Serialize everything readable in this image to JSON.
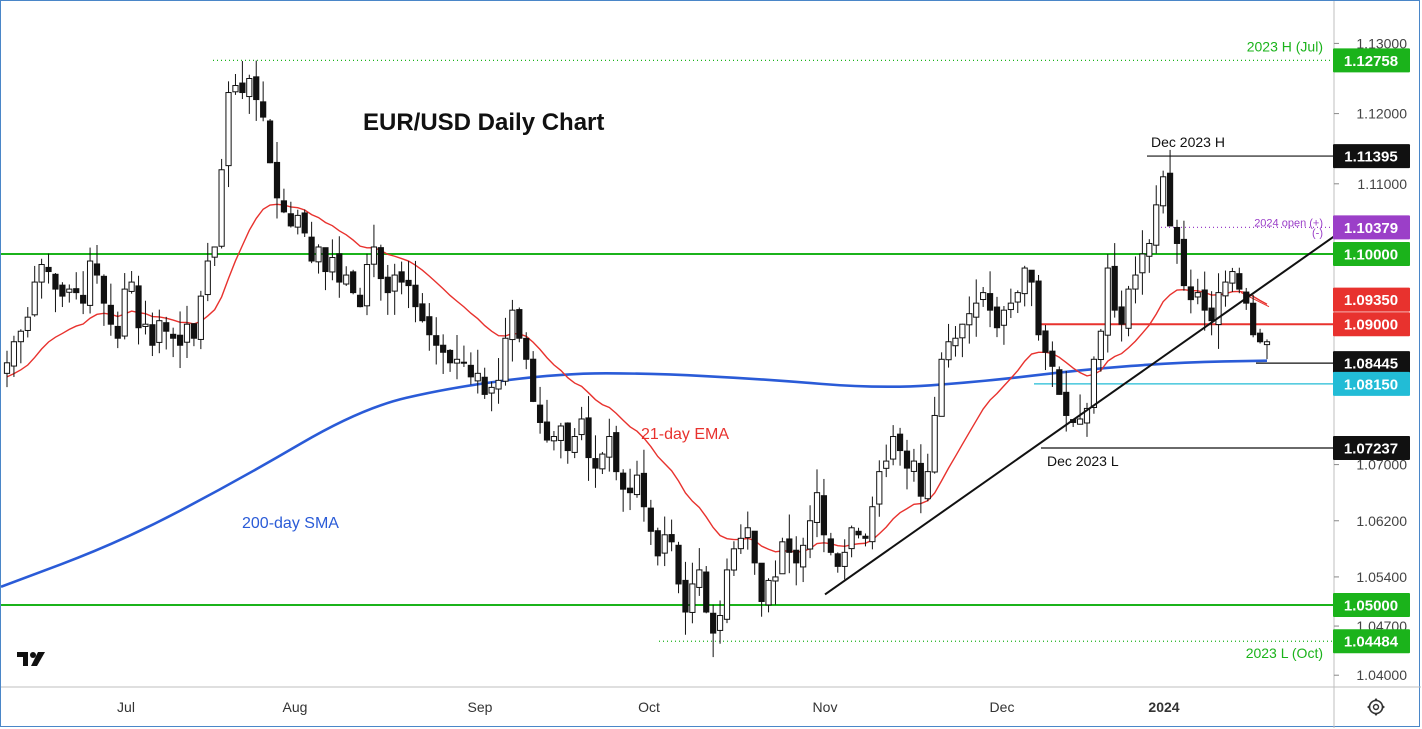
{
  "colors": {
    "green": "#1bb31b",
    "red": "#e8322e",
    "black": "#111111",
    "purple": "#9b3fc8",
    "cyan": "#22bcd6",
    "blue": "#2a5bd7",
    "candle_up": "#ffffff",
    "candle_down": "#111111",
    "grid": "#cccccc",
    "frame": "#4a86c8"
  },
  "chart_data": {
    "type": "candlestick",
    "title": "EUR/USD Daily Chart",
    "xlabel": "",
    "ylabel": "",
    "ylim": [
      1.0375,
      1.133
    ],
    "x_ticks": [
      "Jul",
      "Aug",
      "Sep",
      "Oct",
      "Nov",
      "Dec",
      "2024"
    ],
    "y_ticks": [
      "1.13000",
      "1.12000",
      "1.11000",
      "1.07000",
      "1.06200",
      "1.05400",
      "1.04700",
      "1.04000"
    ],
    "indicator_labels": {
      "ema": "21-day EMA",
      "sma": "200-day SMA"
    },
    "levels": [
      {
        "value": 1.12758,
        "label": "1.12758",
        "color": "green",
        "style": "dotted",
        "note": "2023 H (Jul)"
      },
      {
        "value": 1.11395,
        "label": "1.11395",
        "color": "black",
        "style": "solid",
        "note": "Dec 2023 H"
      },
      {
        "value": 1.10379,
        "label": "1.10379",
        "color": "purple",
        "style": "dotted",
        "note": "2024 open (+)",
        "note2": "(-)"
      },
      {
        "value": 1.1,
        "label": "1.10000",
        "color": "green",
        "style": "solid",
        "note": ""
      },
      {
        "value": 1.0935,
        "label": "1.09350",
        "color": "red",
        "style": "thin",
        "note": ""
      },
      {
        "value": 1.09,
        "label": "1.09000",
        "color": "red",
        "style": "solid",
        "note": ""
      },
      {
        "value": 1.08445,
        "label": "1.08445",
        "color": "black",
        "style": "solid",
        "note": ""
      },
      {
        "value": 1.0815,
        "label": "1.08150",
        "color": "cyan",
        "style": "solid",
        "note": ""
      },
      {
        "value": 1.07237,
        "label": "1.07237",
        "color": "black",
        "style": "solid",
        "note": "Dec 2023 L"
      },
      {
        "value": 1.05,
        "label": "1.05000",
        "color": "green",
        "style": "solid",
        "note": ""
      },
      {
        "value": 1.04484,
        "label": "1.04484",
        "color": "green",
        "style": "dotted",
        "note": "2023 L (Oct)"
      }
    ],
    "trendline": {
      "from": [
        "Nov 1",
        1.0515
      ],
      "to": [
        "Jan 24",
        1.1025
      ]
    },
    "close_approx": [
      1.0845,
      1.0875,
      1.089,
      1.091,
      1.096,
      1.0985,
      1.0975,
      1.095,
      1.094,
      1.095,
      1.0945,
      1.093,
      1.099,
      1.097,
      1.093,
      1.09,
      1.088,
      1.095,
      1.096,
      1.0895,
      1.09,
      1.087,
      1.0905,
      1.089,
      1.088,
      1.087,
      1.09,
      1.088,
      1.094,
      1.099,
      1.101,
      1.112,
      1.123,
      1.124,
      1.123,
      1.125,
      1.122,
      1.1195,
      1.113,
      1.108,
      1.106,
      1.104,
      1.1055,
      1.103,
      1.099,
      1.101,
      1.0975,
      1.0995,
      1.096,
      1.097,
      1.0945,
      1.0925,
      1.0985,
      1.101,
      1.0965,
      1.0945,
      1.097,
      1.096,
      1.0955,
      1.0925,
      1.0905,
      1.0885,
      1.087,
      1.086,
      1.0845,
      1.085,
      1.0845,
      1.0825,
      1.083,
      1.08,
      1.081,
      1.082,
      1.088,
      1.092,
      1.088,
      1.085,
      1.079,
      1.076,
      1.0735,
      1.074,
      1.0755,
      1.072,
      1.074,
      1.0765,
      1.071,
      1.0695,
      1.0715,
      1.074,
      1.069,
      1.0665,
      1.066,
      1.0685,
      1.064,
      1.0605,
      1.057,
      1.06,
      1.059,
      1.053,
      1.049,
      1.053,
      1.055,
      1.049,
      1.046,
      1.0485,
      1.055,
      1.058,
      1.0595,
      1.061,
      1.056,
      1.0505,
      1.0535,
      1.054,
      1.059,
      1.0575,
      1.056,
      1.0585,
      1.062,
      1.066,
      1.06,
      1.0575,
      1.0555,
      1.0575,
      1.061,
      1.06,
      1.0595,
      1.064,
      1.069,
      1.0705,
      1.074,
      1.072,
      1.0695,
      1.0705,
      1.0655,
      1.069,
      1.077,
      1.085,
      1.0875,
      1.088,
      1.09,
      1.0915,
      1.093,
      1.0945,
      1.092,
      1.0895,
      1.092,
      1.093,
      1.0945,
      1.098,
      1.096,
      1.0885,
      1.086,
      1.084,
      1.08,
      1.077,
      1.076,
      1.0765,
      1.078,
      1.085,
      1.089,
      1.098,
      1.092,
      1.09,
      1.095,
      1.097,
      1.1,
      1.1015,
      1.107,
      1.111,
      1.104,
      1.1015,
      1.0955,
      1.0935,
      1.0945,
      1.092,
      1.0905,
      1.0945,
      1.096,
      1.0975,
      1.095,
      1.093,
      1.0885,
      1.0875,
      1.0875
    ]
  },
  "logo": {
    "text": "17"
  },
  "settings_icon": "gear-icon"
}
